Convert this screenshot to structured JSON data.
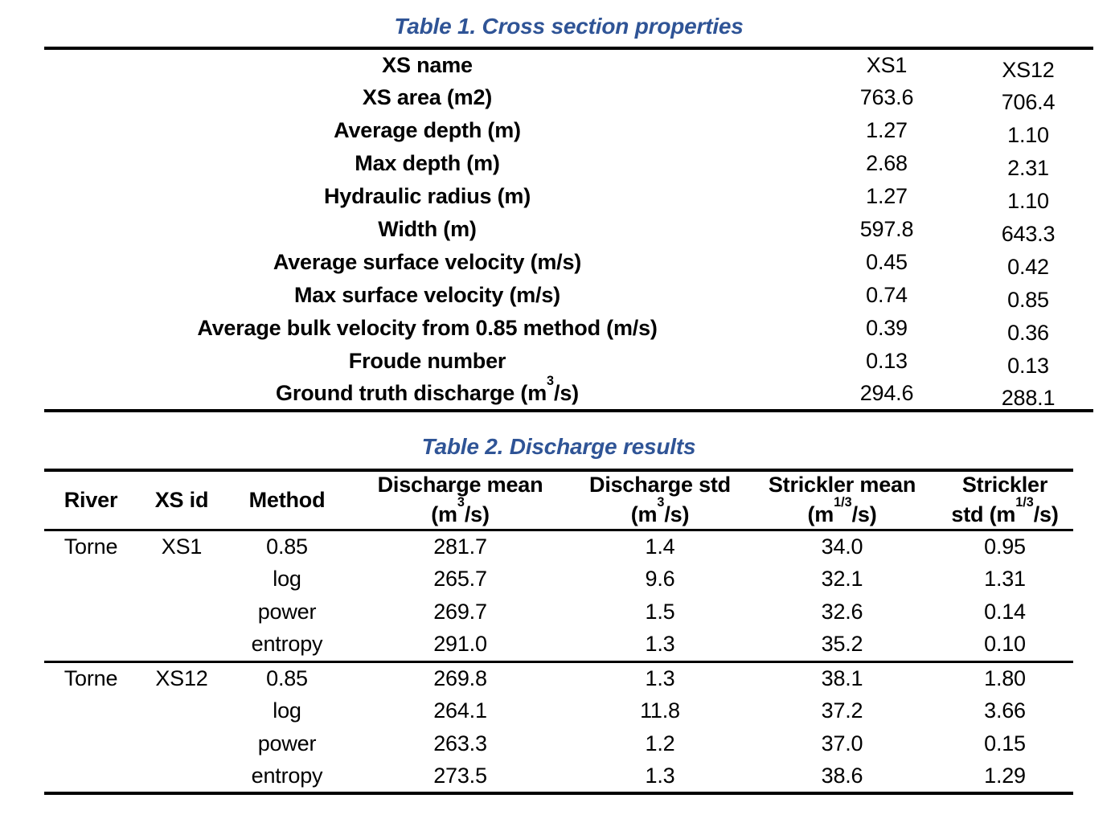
{
  "accent_color": "#2F5496",
  "table1": {
    "title": "Table 1. Cross section properties",
    "rows": [
      {
        "label": "XS name",
        "xs1": "XS1",
        "xs12": "XS12"
      },
      {
        "label": "XS area (m2)",
        "xs1": "763.6",
        "xs12": "706.4"
      },
      {
        "label": "Average depth (m)",
        "xs1": "1.27",
        "xs12": "1.10"
      },
      {
        "label": "Max depth (m)",
        "xs1": "2.68",
        "xs12": "2.31"
      },
      {
        "label": "Hydraulic radius (m)",
        "xs1": "1.27",
        "xs12": "1.10"
      },
      {
        "label": "Width (m)",
        "xs1": "597.8",
        "xs12": "643.3"
      },
      {
        "label": "Average surface velocity (m/s)",
        "xs1": "0.45",
        "xs12": "0.42"
      },
      {
        "label": "Max surface velocity (m/s)",
        "xs1": "0.74",
        "xs12": "0.85"
      },
      {
        "label": "Average bulk velocity from 0.85 method (m/s)",
        "xs1": "0.39",
        "xs12": "0.36"
      },
      {
        "label": "Froude number",
        "xs1": "0.13",
        "xs12": "0.13"
      },
      {
        "label_segments": [
          {
            "t": "Ground truth discharge (m"
          },
          {
            "t": "3",
            "sup": true
          },
          {
            "t": "/s)"
          }
        ],
        "xs1": "294.6",
        "xs12": "288.1"
      }
    ]
  },
  "table2": {
    "title": "Table 2. Discharge results",
    "headers": [
      {
        "segments": [
          {
            "t": "River"
          }
        ]
      },
      {
        "segments": [
          {
            "t": "XS id"
          }
        ]
      },
      {
        "segments": [
          {
            "t": "Method"
          }
        ]
      },
      {
        "segments": [
          {
            "t": "Discharge mean"
          },
          {
            "br": true
          },
          {
            "t": "(m"
          },
          {
            "t": "3",
            "sup": true
          },
          {
            "t": "/s)"
          }
        ]
      },
      {
        "segments": [
          {
            "t": "Discharge std"
          },
          {
            "br": true
          },
          {
            "t": "(m"
          },
          {
            "t": "3",
            "sup": true
          },
          {
            "t": "/s)"
          }
        ]
      },
      {
        "segments": [
          {
            "t": "Strickler mean"
          },
          {
            "br": true
          },
          {
            "t": "(m"
          },
          {
            "t": "1/3",
            "sup": true
          },
          {
            "t": "/s)"
          }
        ]
      },
      {
        "segments": [
          {
            "t": "Strickler"
          },
          {
            "br": true
          },
          {
            "t": "std (m"
          },
          {
            "t": "1/3",
            "sup": true
          },
          {
            "t": "/s)"
          }
        ]
      }
    ],
    "rows": [
      {
        "river": "Torne",
        "xsid": "XS1",
        "method": "0.85",
        "q_mean": "281.7",
        "q_std": "1.4",
        "k_mean": "34.0",
        "k_std": "0.95"
      },
      {
        "river": "",
        "xsid": "",
        "method": "log",
        "q_mean": "265.7",
        "q_std": "9.6",
        "k_mean": "32.1",
        "k_std": "1.31"
      },
      {
        "river": "",
        "xsid": "",
        "method": "power",
        "q_mean": "269.7",
        "q_std": "1.5",
        "k_mean": "32.6",
        "k_std": "0.14"
      },
      {
        "river": "",
        "xsid": "",
        "method": "entropy",
        "q_mean": "291.0",
        "q_std": "1.3",
        "k_mean": "35.2",
        "k_std": "0.10"
      },
      {
        "river": "Torne",
        "xsid": "XS12",
        "method": "0.85",
        "q_mean": "269.8",
        "q_std": "1.3",
        "k_mean": "38.1",
        "k_std": "1.80"
      },
      {
        "river": "",
        "xsid": "",
        "method": "log",
        "q_mean": "264.1",
        "q_std": "11.8",
        "k_mean": "37.2",
        "k_std": "3.66"
      },
      {
        "river": "",
        "xsid": "",
        "method": "power",
        "q_mean": "263.3",
        "q_std": "1.2",
        "k_mean": "37.0",
        "k_std": "0.15"
      },
      {
        "river": "",
        "xsid": "",
        "method": "entropy",
        "q_mean": "273.5",
        "q_std": "1.3",
        "k_mean": "38.6",
        "k_std": "1.29"
      }
    ]
  }
}
